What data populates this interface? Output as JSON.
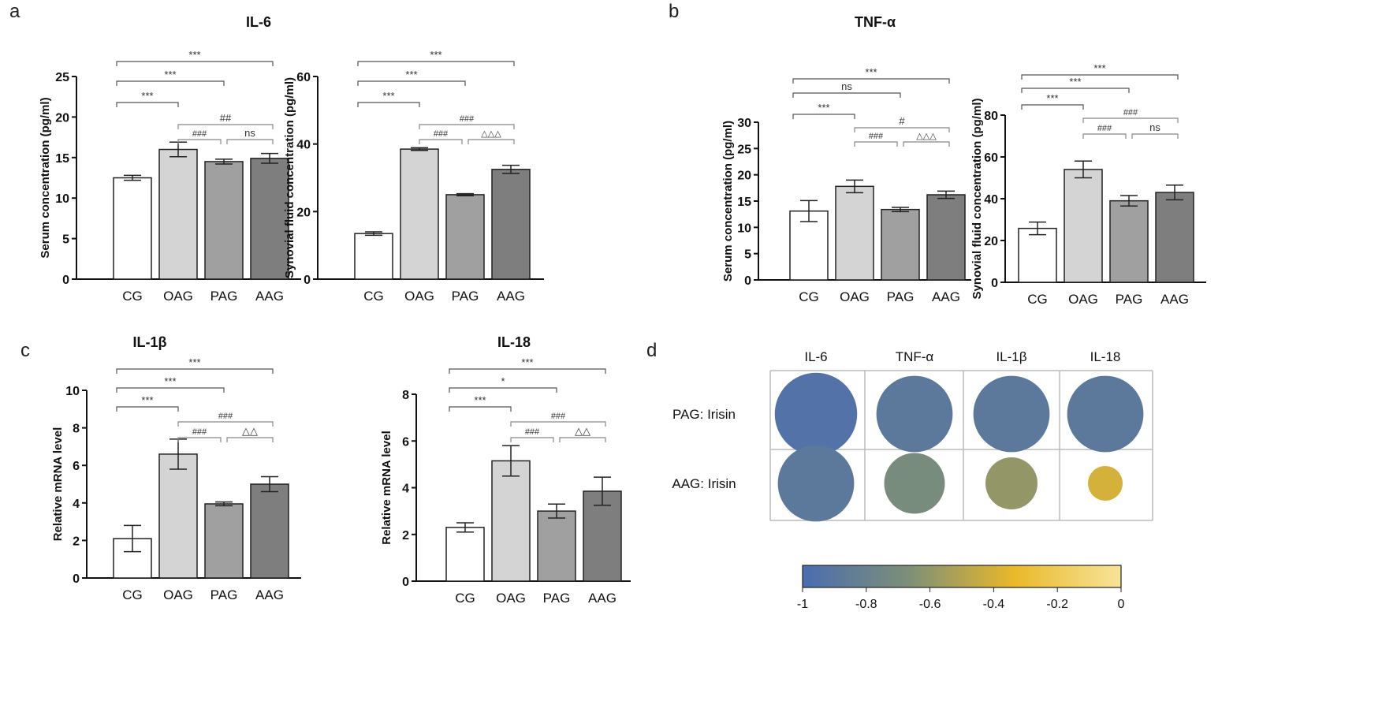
{
  "panel_letters": [
    "a",
    "b",
    "c",
    "d"
  ],
  "chart_data": [
    {
      "type": "bar",
      "panel": "a",
      "title": "IL-6",
      "ylabel": "Serum concentration (pg/ml)",
      "categories": [
        "CG",
        "OAG",
        "PAG",
        "AAG"
      ],
      "values": [
        12.5,
        16.0,
        14.5,
        14.9
      ],
      "errors": [
        0.3,
        0.9,
        0.3,
        0.6
      ],
      "ylim": [
        0,
        25
      ],
      "yticks": [
        0,
        5,
        10,
        15,
        20,
        25
      ],
      "annotations": [
        {
          "from": 0,
          "to": 3,
          "text": "***"
        },
        {
          "from": 0,
          "to": 2,
          "text": "***"
        },
        {
          "from": 0,
          "to": 1,
          "text": "***"
        },
        {
          "from": 1,
          "to": 3,
          "text": "##"
        },
        {
          "from": 1,
          "to": 2,
          "text": "###"
        },
        {
          "from": 2,
          "to": 3,
          "text": "ns"
        }
      ]
    },
    {
      "type": "bar",
      "panel": "a",
      "title": "",
      "ylabel": "Synovial fluid  concentration (pg/ml)",
      "categories": [
        "CG",
        "OAG",
        "PAG",
        "AAG"
      ],
      "values": [
        13.5,
        38.5,
        25.0,
        32.5
      ],
      "errors": [
        0.5,
        0.4,
        0.3,
        1.2
      ],
      "ylim": [
        0,
        60
      ],
      "yticks": [
        0,
        20,
        40,
        60
      ],
      "annotations": [
        {
          "from": 0,
          "to": 3,
          "text": "***"
        },
        {
          "from": 0,
          "to": 2,
          "text": "***"
        },
        {
          "from": 0,
          "to": 1,
          "text": "***"
        },
        {
          "from": 1,
          "to": 3,
          "text": "###"
        },
        {
          "from": 1,
          "to": 2,
          "text": "###"
        },
        {
          "from": 2,
          "to": 3,
          "text": "△△△"
        }
      ]
    },
    {
      "type": "bar",
      "panel": "b",
      "title": "TNF-α",
      "ylabel": "Serum concentration (pg/ml)",
      "categories": [
        "CG",
        "OAG",
        "PAG",
        "AAG"
      ],
      "values": [
        13.1,
        17.8,
        13.4,
        16.2
      ],
      "errors": [
        2.0,
        1.2,
        0.4,
        0.7
      ],
      "ylim": [
        0,
        30
      ],
      "yticks": [
        0,
        5,
        10,
        15,
        20,
        25,
        30
      ],
      "annotations": [
        {
          "from": 0,
          "to": 3,
          "text": "***"
        },
        {
          "from": 0,
          "to": 2,
          "text": "ns"
        },
        {
          "from": 0,
          "to": 1,
          "text": "***"
        },
        {
          "from": 1,
          "to": 3,
          "text": "#"
        },
        {
          "from": 1,
          "to": 2,
          "text": "###"
        },
        {
          "from": 2,
          "to": 3,
          "text": "△△△"
        }
      ]
    },
    {
      "type": "bar",
      "panel": "b",
      "title": "",
      "ylabel": "Synovial fluid  concentration (pg/ml)",
      "categories": [
        "CG",
        "OAG",
        "PAG",
        "AAG"
      ],
      "values": [
        25.8,
        54.0,
        39.0,
        43.0
      ],
      "errors": [
        3.0,
        4.0,
        2.5,
        3.5
      ],
      "ylim": [
        0,
        80
      ],
      "yticks": [
        0,
        20,
        40,
        60,
        80
      ],
      "annotations": [
        {
          "from": 0,
          "to": 3,
          "text": "***"
        },
        {
          "from": 0,
          "to": 2,
          "text": "***"
        },
        {
          "from": 0,
          "to": 1,
          "text": "***"
        },
        {
          "from": 1,
          "to": 3,
          "text": "###"
        },
        {
          "from": 1,
          "to": 2,
          "text": "###"
        },
        {
          "from": 2,
          "to": 3,
          "text": "ns"
        }
      ]
    },
    {
      "type": "bar",
      "panel": "c",
      "title": "IL-1β",
      "ylabel": "Relative mRNA level",
      "categories": [
        "CG",
        "OAG",
        "PAG",
        "AAG"
      ],
      "values": [
        2.1,
        6.6,
        3.95,
        5.0
      ],
      "errors": [
        0.7,
        0.8,
        0.1,
        0.4
      ],
      "ylim": [
        0,
        10
      ],
      "yticks": [
        0,
        2,
        4,
        6,
        8,
        10
      ],
      "annotations": [
        {
          "from": 0,
          "to": 3,
          "text": "***"
        },
        {
          "from": 0,
          "to": 2,
          "text": "***"
        },
        {
          "from": 0,
          "to": 1,
          "text": "***"
        },
        {
          "from": 1,
          "to": 3,
          "text": "###"
        },
        {
          "from": 1,
          "to": 2,
          "text": "###"
        },
        {
          "from": 2,
          "to": 3,
          "text": "△△"
        }
      ]
    },
    {
      "type": "bar",
      "panel": "c",
      "title": "IL-18",
      "ylabel": "Relative mRNA level",
      "categories": [
        "CG",
        "OAG",
        "PAG",
        "AAG"
      ],
      "values": [
        2.3,
        5.15,
        3.0,
        3.85
      ],
      "errors": [
        0.2,
        0.65,
        0.3,
        0.6
      ],
      "ylim": [
        0,
        8
      ],
      "yticks": [
        0,
        2,
        4,
        6,
        8
      ],
      "annotations": [
        {
          "from": 0,
          "to": 3,
          "text": "***"
        },
        {
          "from": 0,
          "to": 2,
          "text": "*"
        },
        {
          "from": 0,
          "to": 1,
          "text": "***"
        },
        {
          "from": 1,
          "to": 3,
          "text": "###"
        },
        {
          "from": 1,
          "to": 2,
          "text": "###"
        },
        {
          "from": 2,
          "to": 3,
          "text": "△△"
        }
      ]
    },
    {
      "type": "heatmap",
      "panel": "d",
      "columns": [
        "IL-6",
        "TNF-α",
        "IL-1β",
        "IL-18"
      ],
      "rows": [
        "PAG: Irisin",
        "AAG: Irisin"
      ],
      "values": [
        [
          -0.95,
          -0.88,
          -0.88,
          -0.88
        ],
        [
          -0.88,
          -0.7,
          -0.6,
          -0.4
        ]
      ],
      "colorbar": {
        "range": [
          -1,
          0
        ],
        "ticks": [
          "-1",
          "-0.8",
          "-0.6",
          "-0.4",
          "-0.2",
          "0"
        ],
        "colors": [
          "#4a6db0",
          "#7d8f78",
          "#e9b92a",
          "#f7e49a"
        ]
      }
    }
  ],
  "bar_colors": [
    "#ffffff",
    "#d4d4d4",
    "#a0a0a0",
    "#7e7e7e"
  ]
}
